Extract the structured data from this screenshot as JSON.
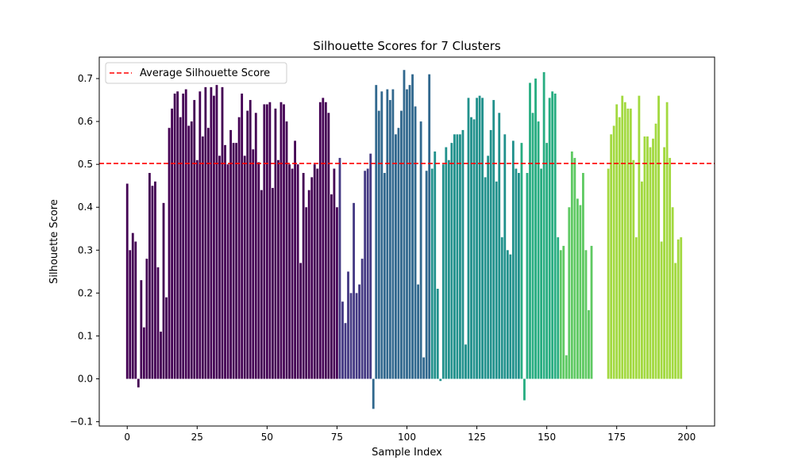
{
  "chart_data": {
    "type": "bar",
    "title": "Silhouette Scores for 7 Clusters",
    "xlabel": "Sample Index",
    "ylabel": "Silhouette Score",
    "xlim": [
      -10,
      210
    ],
    "ylim": [
      -0.11,
      0.75
    ],
    "xticks": [
      0,
      25,
      50,
      75,
      100,
      125,
      150,
      175,
      200
    ],
    "yticks": [
      -0.1,
      0.0,
      0.1,
      0.2,
      0.3,
      0.4,
      0.5,
      0.6,
      0.7
    ],
    "average_line": {
      "value": 0.502,
      "label": "Average Silhouette Score",
      "color": "#ff0000",
      "style": "dashed"
    },
    "legend": {
      "placement": "top-left"
    },
    "grid": false,
    "clusters": [
      {
        "color": "#440154",
        "start": 0,
        "values": [
          0.455,
          0.3,
          0.34,
          0.32,
          -0.02,
          0.23,
          0.12,
          0.28,
          0.48,
          0.45,
          0.46,
          0.26,
          0.11,
          0.41,
          0.19,
          0.585,
          0.63,
          0.665,
          0.67,
          0.61,
          0.665,
          0.675,
          0.59,
          0.6,
          0.65,
          0.51,
          0.67,
          0.565,
          0.68,
          0.585,
          0.68,
          0.66,
          0.685,
          0.52,
          0.68,
          0.545,
          0.5,
          0.58,
          0.55,
          0.55,
          0.61,
          0.665,
          0.52,
          0.625,
          0.65,
          0.535,
          0.62,
          0.505,
          0.44,
          0.64,
          0.64,
          0.645,
          0.445,
          0.63,
          0.51,
          0.645,
          0.64,
          0.6,
          0.5,
          0.49,
          0.555,
          0.5,
          0.27,
          0.48,
          0.4,
          0.44,
          0.47,
          0.5,
          0.49,
          0.645,
          0.655,
          0.645,
          0.62,
          0.43,
          0.49,
          0.4
        ]
      },
      {
        "color": "#443983",
        "start": 76,
        "values": [
          0.515,
          0.18,
          0.13,
          0.25,
          0.2,
          0.41,
          0.2,
          0.22,
          0.28,
          0.485,
          0.49,
          0.525
        ]
      },
      {
        "color": "#31688e",
        "start": 88,
        "values": [
          -0.07,
          0.685,
          0.625,
          0.67,
          0.48,
          0.675,
          0.65,
          0.675,
          0.57,
          0.585,
          0.625,
          0.72,
          0.675,
          0.685,
          0.71,
          0.635,
          0.22,
          0.6,
          0.05,
          0.485,
          0.71
        ]
      },
      {
        "color": "#21918c",
        "start": 109,
        "values": [
          0.49,
          0.53,
          0.21,
          -0.005,
          0.5,
          0.54,
          0.51,
          0.55,
          0.57,
          0.57,
          0.57,
          0.58,
          0.08,
          0.655,
          0.61,
          0.605,
          0.655,
          0.66,
          0.655,
          0.47,
          0.52,
          0.58,
          0.65,
          0.46,
          0.62,
          0.33,
          0.57,
          0.3,
          0.29,
          0.555,
          0.49,
          0.48
        ]
      },
      {
        "color": "#27ad81",
        "start": 141,
        "values": [
          0.55,
          -0.05,
          0.48,
          0.69,
          0.62,
          0.7,
          0.6,
          0.49,
          0.715,
          0.55,
          0.655,
          0.67,
          0.665,
          0.33
        ]
      },
      {
        "color": "#5ec962",
        "start": 155,
        "values": [
          0.3,
          0.31,
          0.055,
          0.4,
          0.53,
          0.515,
          0.42,
          0.405,
          0.48,
          0.3,
          0.16,
          0.31
        ]
      },
      {
        "color": "#a2d93f",
        "start": 172,
        "values": [
          0.49,
          0.57,
          0.59,
          0.64,
          0.61,
          0.66,
          0.645,
          0.63,
          0.63,
          0.51,
          0.33,
          0.66,
          0.46,
          0.565,
          0.565,
          0.54,
          0.56,
          0.595,
          0.66,
          0.32,
          0.54,
          0.645,
          0.515,
          0.4,
          0.27,
          0.325,
          0.33
        ]
      }
    ]
  }
}
